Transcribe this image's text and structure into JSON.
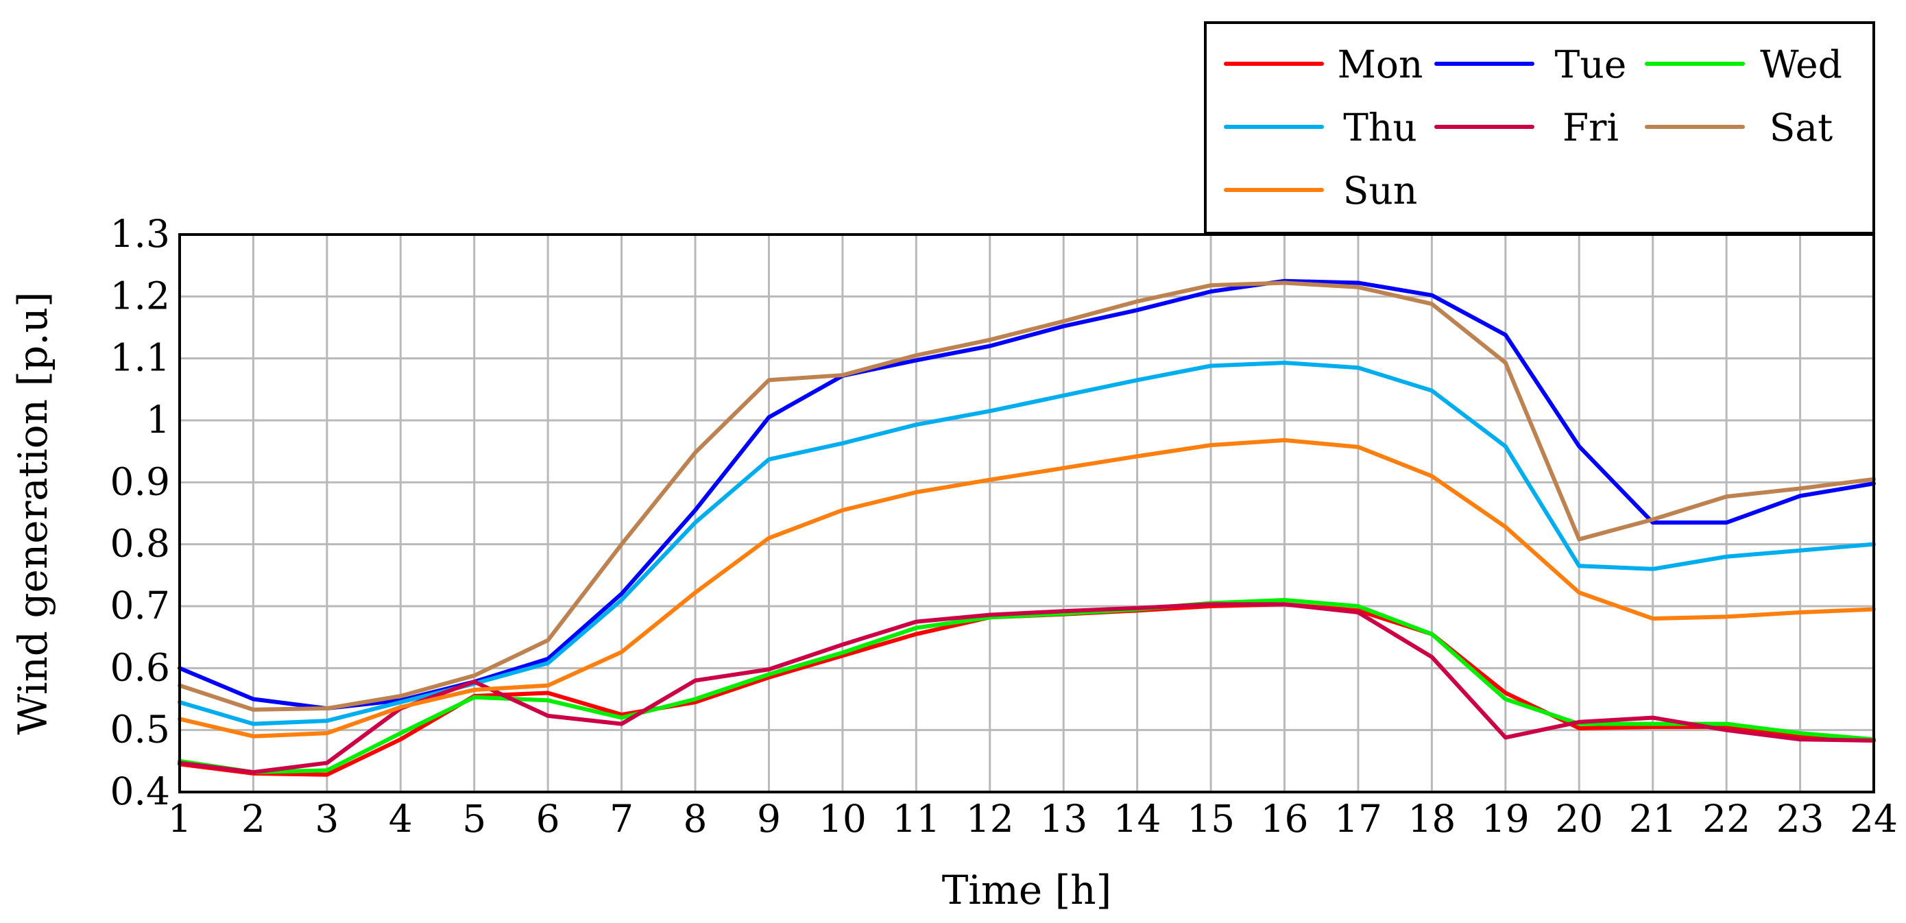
{
  "chart_data": {
    "type": "line",
    "title": "",
    "xlabel": "Time [h]",
    "ylabel": "Wind generation [p.u]",
    "xlim": [
      1,
      24
    ],
    "ylim": [
      0.4,
      1.3
    ],
    "grid": true,
    "legend_position": "top-right-outside",
    "x": [
      1,
      2,
      3,
      4,
      5,
      6,
      7,
      8,
      9,
      10,
      11,
      12,
      13,
      14,
      15,
      16,
      17,
      18,
      19,
      20,
      21,
      22,
      23,
      24
    ],
    "x_ticks": [
      "1",
      "2",
      "3",
      "4",
      "5",
      "6",
      "7",
      "8",
      "9",
      "10",
      "11",
      "12",
      "13",
      "14",
      "15",
      "16",
      "17",
      "18",
      "19",
      "20",
      "21",
      "22",
      "23",
      "24"
    ],
    "y_ticks": [
      "0.4",
      "0.5",
      "0.6",
      "0.7",
      "0.8",
      "0.9",
      "1",
      "1.1",
      "1.2",
      "1.3"
    ],
    "series": [
      {
        "name": "Mon",
        "color": "#ff0000",
        "values": [
          0.445,
          0.43,
          0.428,
          0.485,
          0.555,
          0.56,
          0.525,
          0.545,
          0.585,
          0.62,
          0.655,
          0.682,
          0.687,
          0.693,
          0.7,
          0.703,
          0.693,
          0.655,
          0.56,
          0.503,
          0.505,
          0.505,
          0.49,
          0.485
        ]
      },
      {
        "name": "Tue",
        "color": "#0000ff",
        "values": [
          0.6,
          0.55,
          0.535,
          0.548,
          0.578,
          0.615,
          0.72,
          0.855,
          1.005,
          1.072,
          1.097,
          1.12,
          1.152,
          1.178,
          1.208,
          1.225,
          1.222,
          1.202,
          1.138,
          0.958,
          0.835,
          0.835,
          0.878,
          0.898
        ]
      },
      {
        "name": "Wed",
        "color": "#00ee00",
        "values": [
          0.45,
          0.432,
          0.435,
          0.495,
          0.553,
          0.548,
          0.52,
          0.55,
          0.59,
          0.625,
          0.665,
          0.682,
          0.688,
          0.695,
          0.705,
          0.71,
          0.7,
          0.655,
          0.55,
          0.51,
          0.51,
          0.51,
          0.495,
          0.485
        ]
      },
      {
        "name": "Thu",
        "color": "#00aeef",
        "values": [
          0.545,
          0.51,
          0.515,
          0.545,
          0.575,
          0.608,
          0.71,
          0.835,
          0.937,
          0.963,
          0.993,
          1.015,
          1.04,
          1.065,
          1.088,
          1.093,
          1.085,
          1.048,
          0.958,
          0.765,
          0.76,
          0.78,
          0.79,
          0.8
        ]
      },
      {
        "name": "Fri",
        "color": "#cc0044",
        "values": [
          0.447,
          0.432,
          0.447,
          0.535,
          0.578,
          0.523,
          0.51,
          0.58,
          0.598,
          0.638,
          0.675,
          0.686,
          0.692,
          0.697,
          0.703,
          0.703,
          0.69,
          0.618,
          0.488,
          0.513,
          0.52,
          0.5,
          0.485,
          0.483
        ]
      },
      {
        "name": "Sat",
        "color": "#bd8250",
        "values": [
          0.572,
          0.533,
          0.535,
          0.555,
          0.588,
          0.645,
          0.8,
          0.948,
          1.065,
          1.073,
          1.105,
          1.13,
          1.16,
          1.192,
          1.218,
          1.222,
          1.215,
          1.188,
          1.093,
          0.808,
          0.84,
          0.877,
          0.89,
          0.905
        ]
      },
      {
        "name": "Sun",
        "color": "#ff7f0e",
        "values": [
          0.518,
          0.49,
          0.495,
          0.537,
          0.565,
          0.572,
          0.626,
          0.722,
          0.81,
          0.855,
          0.884,
          0.904,
          0.923,
          0.942,
          0.96,
          0.968,
          0.957,
          0.91,
          0.828,
          0.722,
          0.68,
          0.683,
          0.69,
          0.695
        ]
      }
    ]
  }
}
